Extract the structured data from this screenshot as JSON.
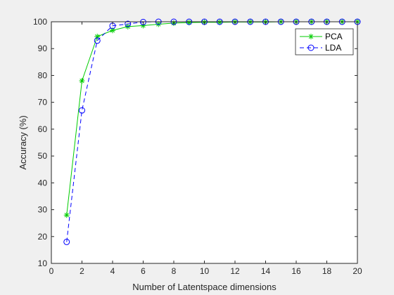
{
  "chart_data": {
    "type": "line",
    "title": "",
    "xlabel": "Number of Latentspace dimensions",
    "ylabel": "Accuracy (%)",
    "xlim": [
      0,
      20
    ],
    "ylim": [
      10,
      100
    ],
    "xticks": [
      0,
      2,
      4,
      6,
      8,
      10,
      12,
      14,
      16,
      18,
      20
    ],
    "yticks": [
      10,
      20,
      30,
      40,
      50,
      60,
      70,
      80,
      90,
      100
    ],
    "grid": false,
    "legend_position": "top-right",
    "x": [
      1,
      2,
      3,
      4,
      5,
      6,
      7,
      8,
      9,
      10,
      11,
      12,
      13,
      14,
      15,
      16,
      17,
      18,
      19,
      20
    ],
    "series": [
      {
        "name": "PCA",
        "color": "#00cc00",
        "marker": "asterisk",
        "line_style": "solid",
        "values": [
          28,
          78,
          94.5,
          96.8,
          98.2,
          98.6,
          99.1,
          99.5,
          99.7,
          99.8,
          99.8,
          99.9,
          99.9,
          99.9,
          100,
          100,
          100,
          100,
          100,
          100
        ]
      },
      {
        "name": "LDA",
        "color": "#0000ff",
        "marker": "circle",
        "line_style": "dashed",
        "values": [
          18,
          67,
          93,
          98.5,
          99.2,
          99.9,
          100,
          100,
          100,
          100,
          100,
          100,
          100,
          100,
          100,
          100,
          100,
          100,
          100,
          100
        ]
      }
    ]
  }
}
